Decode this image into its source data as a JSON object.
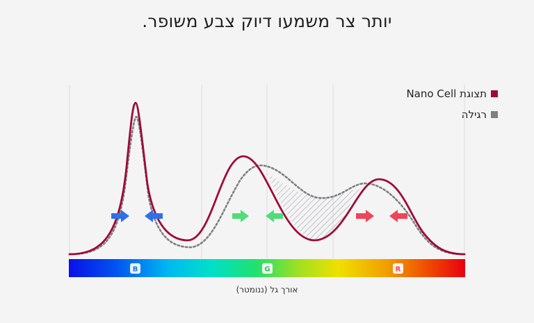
{
  "title": "יותר צר משמעו דיוק צבע משופר.",
  "legend": [
    {
      "label": "תצוגת Nano Cell",
      "color": "#9e0a38"
    },
    {
      "label": "רגילה",
      "color": "#808080"
    }
  ],
  "colors": {
    "nano": "#9e0a38",
    "regular": "#808080",
    "grid": "#dcdcdc",
    "arrow_blue": "#2f6fe8",
    "arrow_green": "#4fdc7a",
    "arrow_red": "#ef4559"
  },
  "chart_data": {
    "type": "line",
    "xlabel": "אורך גל (ננומטר)",
    "ylabel": "",
    "color_bands": [
      "B",
      "G",
      "R"
    ],
    "series": [
      {
        "name": "תצוגת Nano Cell",
        "peaks": [
          {
            "band": "B",
            "height": 0.92
          },
          {
            "band": "G",
            "height": 0.62
          },
          {
            "band": "R",
            "height": 0.48
          }
        ]
      },
      {
        "name": "רגילה",
        "peaks": [
          {
            "band": "B",
            "height": 0.81
          },
          {
            "band": "G",
            "height": 0.53
          },
          {
            "band": "R",
            "height": 0.43
          }
        ]
      }
    ],
    "arrows": [
      {
        "band": "B",
        "color": "blue"
      },
      {
        "band": "G",
        "color": "green"
      },
      {
        "band": "R",
        "color": "red"
      }
    ]
  }
}
